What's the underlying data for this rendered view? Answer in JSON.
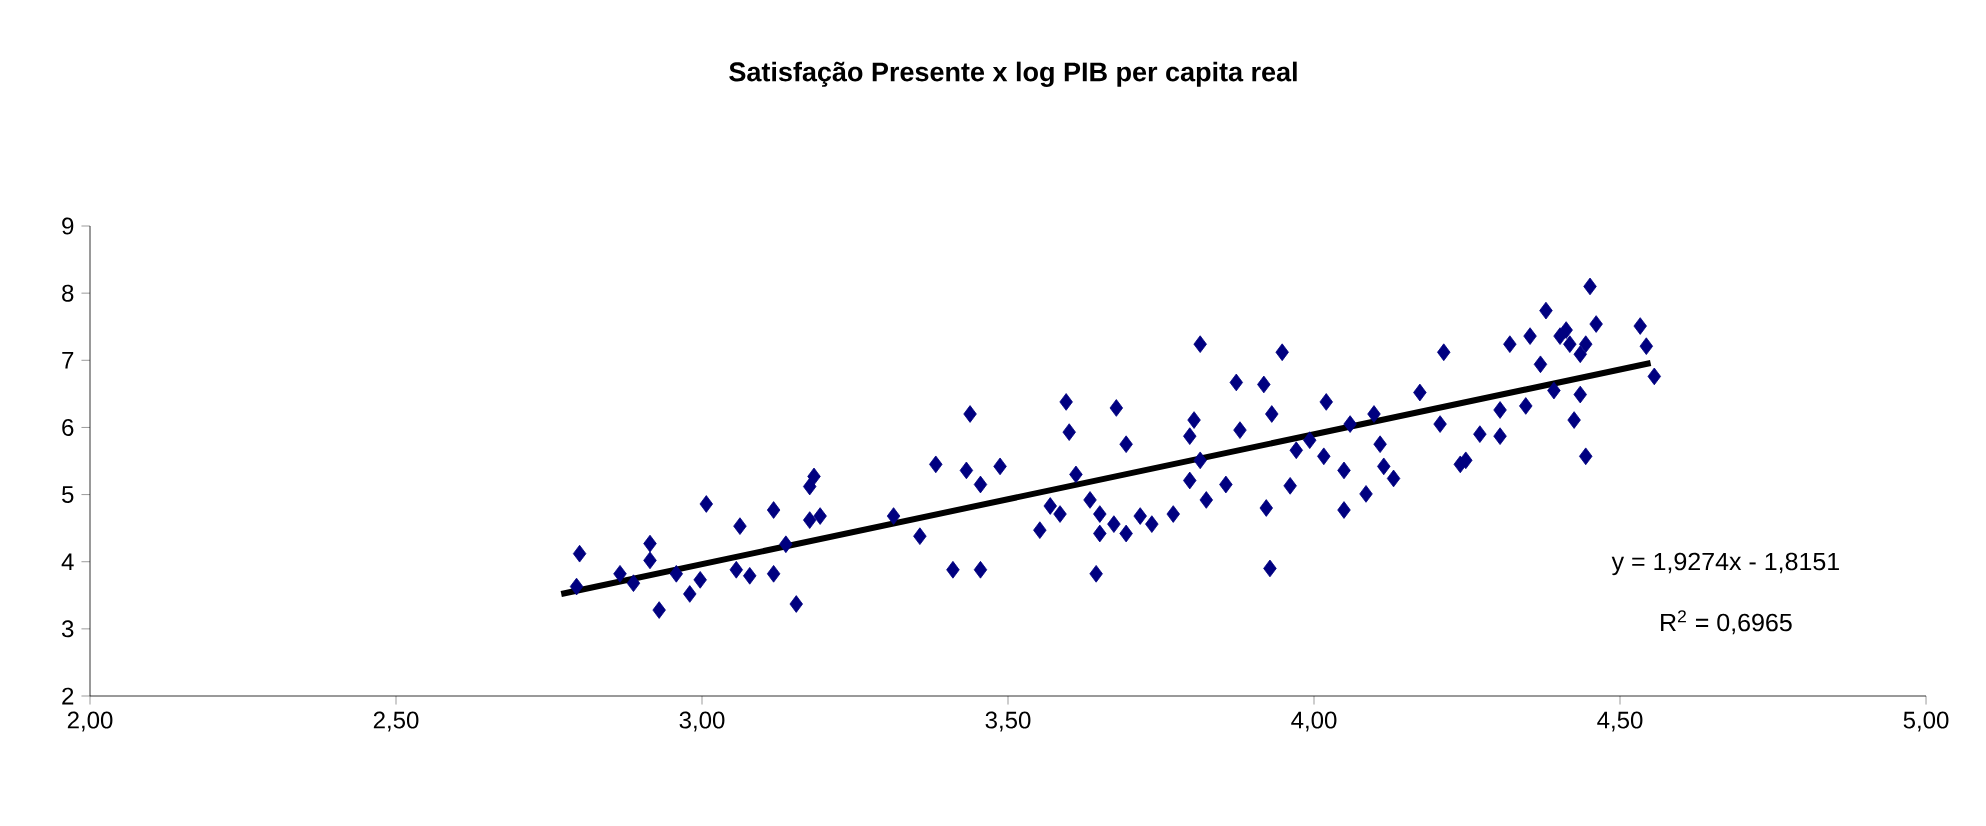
{
  "chart_data": {
    "type": "scatter",
    "title": "Satisfação  Presente x log PIB per capita real",
    "xlim": [
      2,
      5
    ],
    "ylim": [
      2,
      9
    ],
    "xticks": [
      {
        "value": 2,
        "label": "2,00"
      },
      {
        "value": 2.5,
        "label": "2,50"
      },
      {
        "value": 3,
        "label": "3,00"
      },
      {
        "value": 3.5,
        "label": "3,50"
      },
      {
        "value": 4,
        "label": "4,00"
      },
      {
        "value": 4.5,
        "label": "4,50"
      },
      {
        "value": 5,
        "label": "5,00"
      }
    ],
    "yticks": [
      2,
      3,
      4,
      5,
      6,
      7,
      8,
      9
    ],
    "grid": false,
    "marker": "diamond",
    "annotations": [
      "y = 1,9274x - 1,8151",
      "R$^{2}$ = 0,6965"
    ],
    "series": [
      {
        "color": "#000080",
        "x": [
          2.8,
          2.795,
          2.866,
          2.888,
          2.915,
          2.915,
          2.93,
          2.958,
          2.98,
          2.997,
          3.007,
          3.062,
          3.056,
          3.078,
          3.117,
          3.117,
          3.137,
          3.154,
          3.176,
          3.176,
          3.183,
          3.193,
          3.313,
          3.356,
          3.382,
          3.41,
          3.438,
          3.432,
          3.455,
          3.455,
          3.487,
          3.595,
          3.6,
          3.677,
          3.693,
          3.611,
          3.569,
          3.552,
          3.585,
          3.634,
          3.65,
          3.673,
          3.693,
          3.716,
          3.735,
          3.65,
          3.644,
          3.77,
          3.804,
          3.797,
          3.814,
          3.814,
          3.797,
          3.824,
          3.856,
          3.873,
          3.918,
          3.879,
          3.931,
          3.948,
          3.961,
          3.922,
          3.928,
          3.971,
          3.993,
          4.02,
          4.016,
          4.049,
          4.049,
          4.085,
          4.059,
          4.098,
          4.108,
          4.114,
          4.13,
          4.173,
          4.206,
          4.212,
          4.239,
          4.248,
          4.271,
          4.304,
          4.304,
          4.346,
          4.37,
          4.32,
          4.353,
          4.379,
          4.392,
          4.412,
          4.418,
          4.435,
          4.451,
          4.461,
          4.425,
          4.444,
          4.435,
          4.533,
          4.543,
          4.556,
          4.402,
          4.444
        ],
        "values": [
          4.12,
          3.63,
          3.82,
          3.68,
          4.27,
          4.02,
          3.28,
          3.82,
          3.52,
          3.73,
          4.86,
          4.53,
          3.88,
          3.79,
          4.77,
          3.82,
          4.26,
          3.37,
          4.62,
          5.12,
          5.27,
          4.68,
          4.68,
          4.38,
          5.45,
          3.88,
          6.2,
          5.36,
          5.15,
          3.88,
          5.42,
          6.38,
          5.93,
          6.29,
          5.75,
          5.3,
          4.83,
          4.47,
          4.71,
          4.92,
          4.42,
          4.56,
          4.42,
          4.68,
          4.56,
          4.71,
          3.82,
          4.71,
          6.11,
          5.87,
          7.24,
          5.51,
          5.21,
          4.92,
          5.15,
          6.67,
          6.64,
          5.96,
          6.2,
          7.12,
          5.13,
          4.8,
          3.9,
          5.66,
          5.81,
          6.38,
          5.57,
          5.36,
          4.77,
          5.01,
          6.05,
          6.2,
          5.75,
          5.42,
          5.24,
          6.52,
          6.05,
          7.12,
          5.45,
          5.51,
          5.9,
          5.87,
          6.26,
          6.32,
          6.94,
          7.24,
          7.36,
          7.74,
          6.55,
          7.45,
          7.24,
          7.09,
          8.1,
          7.54,
          6.11,
          5.57,
          6.49,
          7.51,
          7.21,
          6.76,
          7.36,
          7.24
        ]
      },
      {
        "type": "line",
        "color": "#000000",
        "marker": "none",
        "x": [
          2.77,
          4.55
        ],
        "values": [
          3.52,
          6.96
        ]
      }
    ]
  }
}
